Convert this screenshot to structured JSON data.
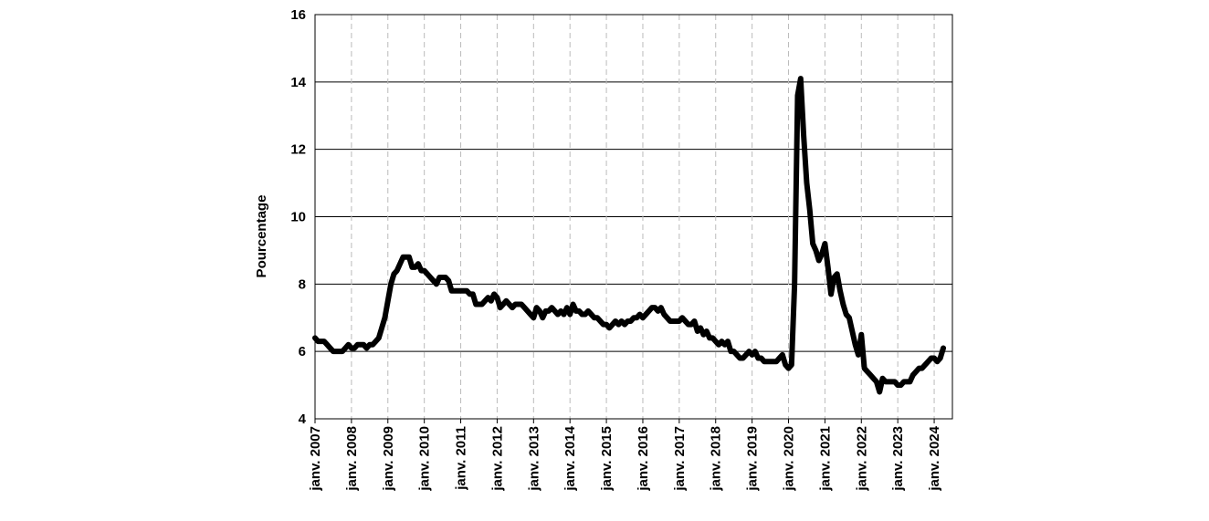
{
  "chart_data": {
    "type": "line",
    "y_label": "Pourcentage",
    "categories": [
      "janv. 2007",
      null,
      null,
      null,
      null,
      null,
      null,
      null,
      null,
      null,
      null,
      null,
      "janv. 2008",
      null,
      null,
      null,
      null,
      null,
      null,
      null,
      null,
      null,
      null,
      null,
      "janv. 2009",
      null,
      null,
      null,
      null,
      null,
      null,
      null,
      null,
      null,
      null,
      null,
      "janv. 2010",
      null,
      null,
      null,
      null,
      null,
      null,
      null,
      null,
      null,
      null,
      null,
      "janv. 2011",
      null,
      null,
      null,
      null,
      null,
      null,
      null,
      null,
      null,
      null,
      null,
      "janv. 2012",
      null,
      null,
      null,
      null,
      null,
      null,
      null,
      null,
      null,
      null,
      null,
      "janv. 2013",
      null,
      null,
      null,
      null,
      null,
      null,
      null,
      null,
      null,
      null,
      null,
      "janv. 2014",
      null,
      null,
      null,
      null,
      null,
      null,
      null,
      null,
      null,
      null,
      null,
      "janv. 2015",
      null,
      null,
      null,
      null,
      null,
      null,
      null,
      null,
      null,
      null,
      null,
      "janv. 2016",
      null,
      null,
      null,
      null,
      null,
      null,
      null,
      null,
      null,
      null,
      null,
      "janv. 2017",
      null,
      null,
      null,
      null,
      null,
      null,
      null,
      null,
      null,
      null,
      null,
      "janv. 2018",
      null,
      null,
      null,
      null,
      null,
      null,
      null,
      null,
      null,
      null,
      null,
      "janv. 2019",
      null,
      null,
      null,
      null,
      null,
      null,
      null,
      null,
      null,
      null,
      null,
      "janv. 2020",
      null,
      null,
      null,
      null,
      null,
      null,
      null,
      null,
      null,
      null,
      null,
      "janv. 2021",
      null,
      null,
      null,
      null,
      null,
      null,
      null,
      null,
      null,
      null,
      null,
      "janv. 2022",
      null,
      null,
      null,
      null,
      null,
      null,
      null,
      null,
      null,
      null,
      null,
      "janv. 2023",
      null,
      null,
      null,
      null,
      null,
      null,
      null,
      null,
      null,
      null,
      null,
      "janv. 2024",
      null,
      null,
      null
    ],
    "values": [
      6.4,
      6.3,
      6.3,
      6.3,
      6.2,
      6.1,
      6.0,
      6.0,
      6.0,
      6.0,
      6.1,
      6.2,
      6.1,
      6.1,
      6.2,
      6.2,
      6.2,
      6.1,
      6.2,
      6.2,
      6.3,
      6.4,
      6.7,
      7.0,
      7.5,
      8.0,
      8.3,
      8.4,
      8.6,
      8.8,
      8.8,
      8.8,
      8.5,
      8.5,
      8.6,
      8.4,
      8.4,
      8.3,
      8.2,
      8.1,
      8.0,
      8.2,
      8.2,
      8.2,
      8.1,
      7.8,
      7.8,
      7.8,
      7.8,
      7.8,
      7.8,
      7.7,
      7.7,
      7.4,
      7.4,
      7.4,
      7.5,
      7.6,
      7.5,
      7.7,
      7.6,
      7.3,
      7.4,
      7.5,
      7.4,
      7.3,
      7.4,
      7.4,
      7.4,
      7.3,
      7.2,
      7.1,
      7.0,
      7.3,
      7.2,
      7.0,
      7.2,
      7.2,
      7.3,
      7.2,
      7.1,
      7.2,
      7.1,
      7.3,
      7.1,
      7.4,
      7.2,
      7.2,
      7.1,
      7.1,
      7.2,
      7.1,
      7.0,
      7.0,
      6.9,
      6.8,
      6.8,
      6.7,
      6.8,
      6.9,
      6.8,
      6.9,
      6.8,
      6.9,
      6.9,
      7.0,
      7.0,
      7.1,
      7.0,
      7.1,
      7.2,
      7.3,
      7.3,
      7.2,
      7.3,
      7.1,
      7.0,
      6.9,
      6.9,
      6.9,
      6.9,
      7.0,
      6.9,
      6.8,
      6.8,
      6.9,
      6.6,
      6.7,
      6.5,
      6.6,
      6.4,
      6.4,
      6.3,
      6.2,
      6.3,
      6.2,
      6.3,
      6.0,
      6.0,
      5.9,
      5.8,
      5.8,
      5.9,
      6.0,
      5.9,
      6.0,
      5.8,
      5.8,
      5.7,
      5.7,
      5.7,
      5.7,
      5.7,
      5.8,
      5.9,
      5.6,
      5.5,
      5.6,
      8.0,
      13.6,
      14.1,
      12.4,
      11.0,
      10.2,
      9.2,
      9.0,
      8.7,
      8.9,
      9.2,
      8.5,
      7.7,
      8.2,
      8.3,
      7.8,
      7.4,
      7.1,
      7.0,
      6.6,
      6.2,
      5.9,
      6.5,
      5.5,
      5.4,
      5.3,
      5.2,
      5.1,
      4.8,
      5.2,
      5.1,
      5.1,
      5.1,
      5.1,
      5.0,
      5.0,
      5.1,
      5.1,
      5.1,
      5.3,
      5.4,
      5.5,
      5.5,
      5.6,
      5.7,
      5.8,
      5.8,
      5.7,
      5.8,
      6.1
    ],
    "color": "#000000",
    "ylim": [
      4,
      16
    ],
    "yticks": [
      4,
      6,
      8,
      10,
      12,
      14,
      16
    ],
    "grid": true
  }
}
